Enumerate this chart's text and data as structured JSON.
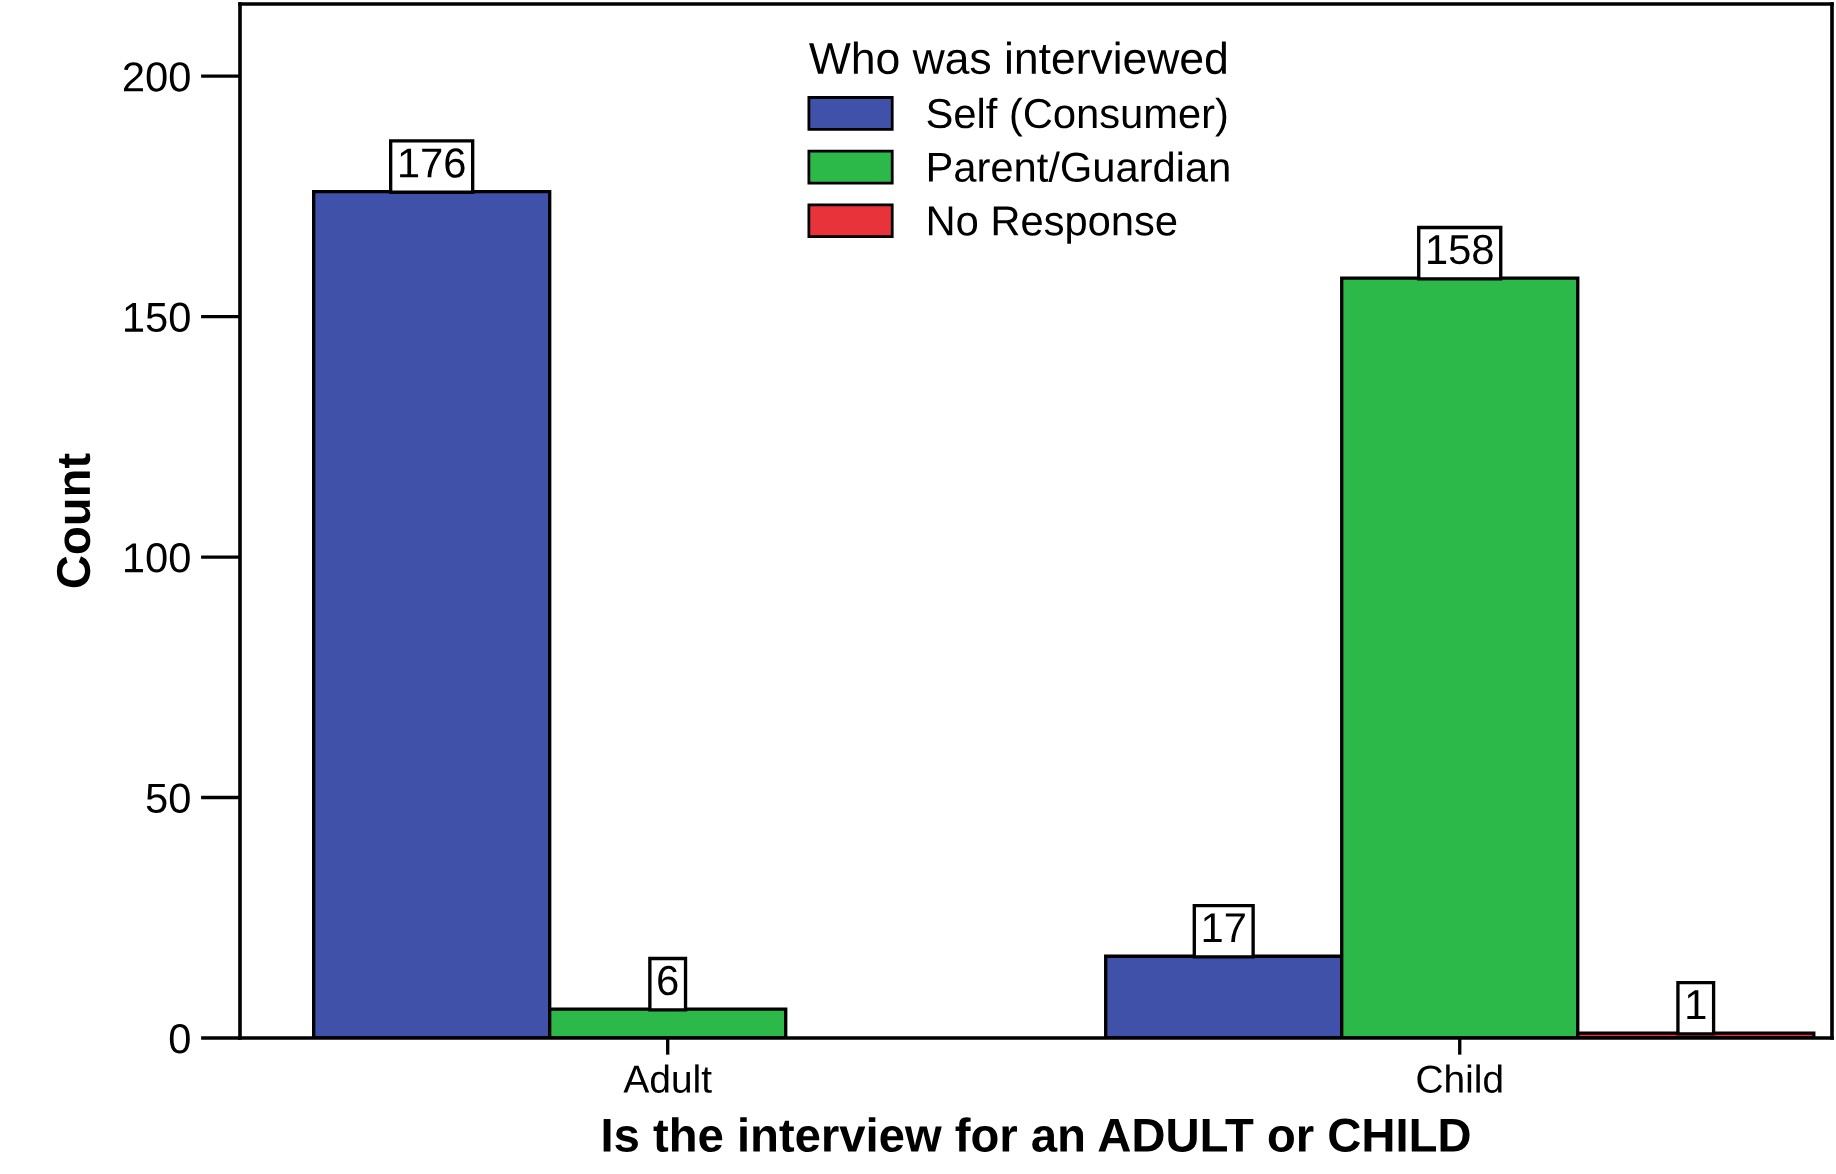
{
  "chart_data": {
    "type": "bar",
    "xlabel": "Is the interview for an ADULT or CHILD",
    "ylabel": "Count",
    "legend_title": "Who was interviewed",
    "categories": [
      "Adult",
      "Child"
    ],
    "series": [
      {
        "name": "Self (Consumer)",
        "color": "#3f51a8",
        "values": [
          176,
          17
        ]
      },
      {
        "name": "Parent/Guardian",
        "color": "#2db84a",
        "values": [
          6,
          158
        ]
      },
      {
        "name": "No Response",
        "color": "#e8333a",
        "values": [
          null,
          1
        ]
      }
    ],
    "ylim": [
      0,
      215
    ],
    "yticks": [
      0,
      50,
      100,
      150,
      200
    ],
    "grid": false,
    "legend": "top",
    "data_labels": true
  }
}
